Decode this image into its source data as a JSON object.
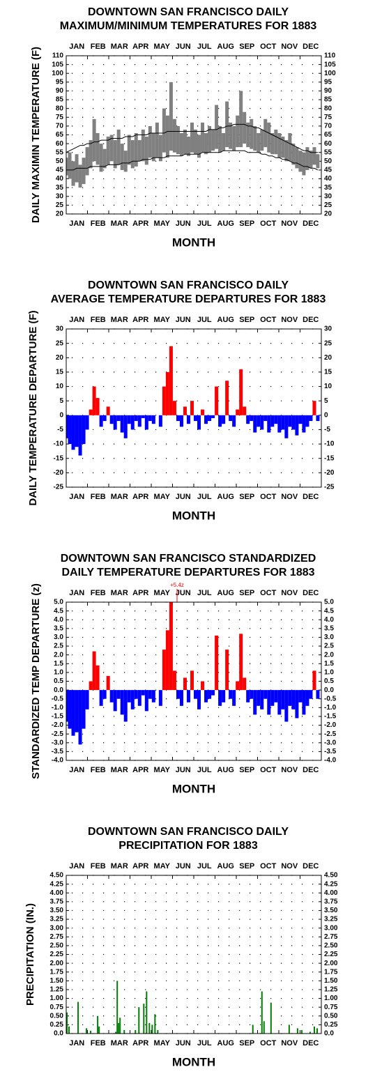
{
  "chart_data": [
    {
      "type": "range",
      "title": [
        "DOWNTOWN SAN FRANCISCO DAILY",
        "MAXIMUM/MINIMUM TEMPERATURES FOR 1883"
      ],
      "ylabel": "DAILY MAXIMIN TEMPERATURE (F)",
      "xlabel": "MONTH",
      "months": [
        "JAN",
        "FEB",
        "MAR",
        "APR",
        "MAY",
        "JUN",
        "JUL",
        "AUG",
        "SEP",
        "OCT",
        "NOV",
        "DEC"
      ],
      "xlim": [
        1,
        366
      ],
      "ylim": [
        20,
        110
      ],
      "yticks": [
        20,
        25,
        30,
        35,
        40,
        45,
        50,
        55,
        60,
        65,
        70,
        75,
        80,
        85,
        90,
        95,
        100,
        105,
        110
      ],
      "grid": true,
      "x": [
        1,
        6,
        11,
        16,
        21,
        26,
        31,
        36,
        41,
        46,
        51,
        56,
        61,
        66,
        71,
        76,
        81,
        86,
        91,
        96,
        101,
        106,
        111,
        116,
        121,
        126,
        131,
        136,
        141,
        146,
        151,
        156,
        161,
        166,
        171,
        176,
        181,
        186,
        191,
        196,
        201,
        206,
        211,
        216,
        221,
        226,
        231,
        236,
        241,
        246,
        251,
        256,
        261,
        266,
        271,
        276,
        281,
        286,
        291,
        296,
        301,
        306,
        311,
        316,
        321,
        326,
        331,
        336,
        341,
        346,
        351,
        356,
        361
      ],
      "series": [
        {
          "color": "#808080",
          "values": [
            52,
            55,
            50,
            54,
            48,
            52,
            58,
            62,
            74,
            66,
            60,
            57,
            64,
            65,
            62,
            68,
            60,
            56,
            65,
            62,
            66,
            62,
            68,
            64,
            70,
            66,
            72,
            65,
            80,
            76,
            95,
            74,
            70,
            66,
            68,
            64,
            72,
            68,
            65,
            72,
            66,
            70,
            68,
            82,
            70,
            66,
            84,
            72,
            70,
            76,
            90,
            78,
            72,
            74,
            70,
            66,
            68,
            74,
            72,
            66,
            68,
            66,
            64,
            62,
            66,
            60,
            58,
            56,
            55,
            58,
            56,
            58,
            54
          ]
        },
        {
          "color": "#808080",
          "values": [
            42,
            40,
            36,
            38,
            35,
            37,
            42,
            46,
            50,
            48,
            44,
            46,
            48,
            50,
            46,
            48,
            45,
            44,
            48,
            46,
            47,
            50,
            50,
            48,
            52,
            50,
            52,
            50,
            55,
            52,
            56,
            55,
            54,
            53,
            54,
            53,
            55,
            54,
            52,
            55,
            54,
            55,
            56,
            57,
            55,
            56,
            58,
            57,
            56,
            58,
            58,
            60,
            58,
            57,
            56,
            55,
            56,
            58,
            55,
            54,
            54,
            52,
            52,
            50,
            50,
            48,
            46,
            44,
            42,
            45,
            46,
            48,
            46
          ]
        },
        {
          "color": "#000000",
          "values": [
            55,
            56,
            57,
            58,
            59,
            59,
            60,
            60,
            61,
            61,
            62,
            62,
            62,
            63,
            63,
            63,
            63,
            64,
            64,
            64,
            65,
            65,
            65,
            65,
            66,
            66,
            66,
            66,
            66,
            67,
            67,
            67,
            67,
            67,
            67,
            67,
            67,
            67,
            67,
            67,
            67,
            68,
            68,
            68,
            69,
            69,
            70,
            70,
            71,
            71,
            71,
            71,
            70,
            70,
            69,
            69,
            68,
            67,
            66,
            65,
            64,
            63,
            62,
            61,
            60,
            59,
            58,
            57,
            56,
            56,
            55,
            55,
            55
          ]
        },
        {
          "color": "#000000",
          "values": [
            45,
            45,
            45,
            46,
            46,
            46,
            46,
            47,
            47,
            47,
            47,
            47,
            48,
            48,
            48,
            48,
            49,
            49,
            49,
            50,
            50,
            50,
            51,
            51,
            51,
            52,
            52,
            52,
            52,
            53,
            53,
            53,
            53,
            53,
            54,
            54,
            54,
            54,
            54,
            55,
            55,
            55,
            55,
            55,
            55,
            56,
            56,
            56,
            56,
            56,
            56,
            56,
            55,
            55,
            55,
            55,
            54,
            54,
            53,
            53,
            52,
            52,
            51,
            51,
            50,
            49,
            49,
            48,
            47,
            47,
            46,
            46,
            45
          ]
        }
      ]
    },
    {
      "type": "bar",
      "title": [
        "DOWNTOWN SAN FRANCISCO DAILY",
        "AVERAGE TEMPERATURE DEPARTURES FOR 1883"
      ],
      "ylabel": "DAILY TEMPERATURE DEPARTURE (F)",
      "xlabel": "MONTH",
      "months": [
        "JAN",
        "FEB",
        "MAR",
        "APR",
        "MAY",
        "JUN",
        "JUL",
        "AUG",
        "SEP",
        "OCT",
        "NOV",
        "DEC"
      ],
      "xlim": [
        1,
        366
      ],
      "ylim": [
        -25,
        30
      ],
      "yticks": [
        -25,
        -20,
        -15,
        -10,
        -5,
        0,
        5,
        10,
        15,
        20,
        25,
        30
      ],
      "grid": true,
      "colors": {
        "positive": "#ff0000",
        "negative": "#0000ff"
      },
      "x": [
        1,
        6,
        11,
        16,
        21,
        26,
        31,
        36,
        41,
        46,
        51,
        56,
        61,
        66,
        71,
        76,
        81,
        86,
        91,
        96,
        101,
        106,
        111,
        116,
        121,
        126,
        131,
        136,
        141,
        146,
        151,
        156,
        161,
        166,
        171,
        176,
        181,
        186,
        191,
        196,
        201,
        206,
        211,
        216,
        221,
        226,
        231,
        236,
        241,
        246,
        251,
        256,
        261,
        266,
        271,
        276,
        281,
        286,
        291,
        296,
        301,
        306,
        311,
        316,
        321,
        326,
        331,
        336,
        341,
        346,
        351,
        356,
        361
      ],
      "values": [
        -8,
        -10,
        -12,
        -11,
        -14,
        -10,
        -5,
        2,
        10,
        6,
        -4,
        -2,
        3,
        -3,
        -5,
        -2,
        -6,
        -8,
        -3,
        -5,
        -2,
        -4,
        -1,
        -5,
        -2,
        -3,
        0,
        -4,
        10,
        15,
        24,
        5,
        -2,
        -4,
        3,
        -3,
        5,
        -2,
        -5,
        2,
        -3,
        -2,
        -1,
        10,
        -4,
        -3,
        12,
        -2,
        -4,
        2,
        16,
        3,
        -3,
        -2,
        -6,
        -4,
        -5,
        -2,
        -6,
        -4,
        -3,
        -6,
        -5,
        -8,
        -4,
        -5,
        -7,
        -3,
        -6,
        -4,
        -2,
        5,
        -2
      ]
    },
    {
      "type": "bar",
      "title": [
        "DOWNTOWN SAN FRANCISCO STANDARDIZED",
        "DAILY TEMPERATURE DEPARTURES FOR 1883"
      ],
      "ylabel": "STANDARDIZED TEMP DEPARTURE (z)",
      "xlabel": "MONTH",
      "annotation": "+5.4z",
      "months": [
        "JAN",
        "FEB",
        "MAR",
        "APR",
        "MAY",
        "JUN",
        "JUL",
        "AUG",
        "SEP",
        "OCT",
        "NOV",
        "DEC"
      ],
      "xlim": [
        1,
        366
      ],
      "ylim": [
        -4,
        5
      ],
      "yticks": [
        {
          "value": -4,
          "label": "-4.0"
        },
        -3.5,
        {
          "value": -3,
          "label": "-3.0"
        },
        -2.5,
        {
          "value": -2,
          "label": "-2.0"
        },
        -1.5,
        {
          "value": -1,
          "label": "-1.0"
        },
        -0.5,
        {
          "value": 0,
          "label": "0.0"
        },
        0.5,
        {
          "value": 1,
          "label": "1.0"
        },
        1.5,
        {
          "value": 2,
          "label": "2.0"
        },
        2.5,
        {
          "value": 3,
          "label": "3.0"
        },
        3.5,
        {
          "value": 4,
          "label": "4.0"
        },
        4.5,
        {
          "value": 5,
          "label": "5.0"
        }
      ],
      "grid": true,
      "colors": {
        "positive": "#ff0000",
        "negative": "#0000ff"
      },
      "x": [
        1,
        6,
        11,
        16,
        21,
        26,
        31,
        36,
        41,
        46,
        51,
        56,
        61,
        66,
        71,
        76,
        81,
        86,
        91,
        96,
        101,
        106,
        111,
        116,
        121,
        126,
        131,
        136,
        141,
        146,
        151,
        156,
        161,
        166,
        171,
        176,
        181,
        186,
        191,
        196,
        201,
        206,
        211,
        216,
        221,
        226,
        231,
        236,
        241,
        246,
        251,
        256,
        261,
        266,
        271,
        276,
        281,
        286,
        291,
        296,
        301,
        306,
        311,
        316,
        321,
        326,
        331,
        336,
        341,
        346,
        351,
        356,
        361
      ],
      "values": [
        -1.8,
        -2.2,
        -2.6,
        -2.4,
        -3.1,
        -2.2,
        -1.1,
        0.5,
        2.2,
        1.4,
        -0.9,
        -0.5,
        0.8,
        -0.7,
        -1.2,
        -0.5,
        -1.4,
        -1.8,
        -0.7,
        -1.1,
        -0.5,
        -0.9,
        -0.3,
        -1.2,
        -0.5,
        -0.7,
        0,
        -0.9,
        2.3,
        3.4,
        5.4,
        1.1,
        -0.5,
        -0.9,
        0.7,
        -0.7,
        1.1,
        -0.5,
        -1.1,
        0.5,
        -0.7,
        -0.5,
        -0.3,
        3.1,
        -0.9,
        -0.7,
        2.3,
        -0.5,
        -0.9,
        0.5,
        3.2,
        0.7,
        -0.7,
        -0.5,
        -1.4,
        -0.9,
        -1.1,
        -0.5,
        -1.4,
        -0.9,
        -0.7,
        -1.4,
        -1.1,
        -1.8,
        -0.9,
        -1.1,
        -1.6,
        -0.7,
        -1.4,
        -0.9,
        -0.5,
        1.1,
        -0.5
      ]
    },
    {
      "type": "bar",
      "title": [
        "DOWNTOWN SAN FRANCISCO DAILY",
        "PRECIPITATION FOR 1883"
      ],
      "ylabel": "PRECIPITATION (IN.)",
      "xlabel": "MONTH",
      "months": [
        "JAN",
        "FEB",
        "MAR",
        "APR",
        "MAY",
        "JUN",
        "JUL",
        "AUG",
        "SEP",
        "OCT",
        "NOV",
        "DEC"
      ],
      "xlim": [
        1,
        366
      ],
      "ylim": [
        0,
        4.5
      ],
      "yticks": [
        {
          "value": 0,
          "label": "0.0"
        },
        0.25,
        {
          "value": 0.5,
          "label": "0.50"
        },
        0.75,
        {
          "value": 1,
          "label": "1.00"
        },
        1.25,
        {
          "value": 1.5,
          "label": "1.50"
        },
        1.75,
        {
          "value": 2,
          "label": "2.00"
        },
        2.25,
        {
          "value": 2.5,
          "label": "2.50"
        },
        2.75,
        {
          "value": 3,
          "label": "3.00"
        },
        3.25,
        {
          "value": 3.5,
          "label": "3.50"
        },
        3.75,
        {
          "value": 4,
          "label": "4.00"
        },
        4.25,
        {
          "value": 4.5,
          "label": "4.50"
        }
      ],
      "grid": true,
      "color": "#008000",
      "x": [
        2,
        5,
        18,
        30,
        36,
        46,
        48,
        72,
        74,
        76,
        78,
        84,
        100,
        105,
        112,
        116,
        120,
        124,
        128,
        132,
        268,
        281,
        284,
        294,
        320,
        332,
        338,
        350,
        356,
        360
      ],
      "values": [
        0.6,
        0.2,
        0.9,
        0.15,
        0.08,
        0.5,
        0.2,
        0.05,
        1.5,
        0.3,
        0.45,
        0.1,
        0.1,
        0.75,
        0.85,
        1.2,
        0.3,
        0.25,
        0.55,
        0.1,
        0.25,
        1.2,
        0.35,
        0.88,
        0.25,
        0.15,
        0.1,
        0.05,
        0.2,
        0.15
      ]
    }
  ]
}
